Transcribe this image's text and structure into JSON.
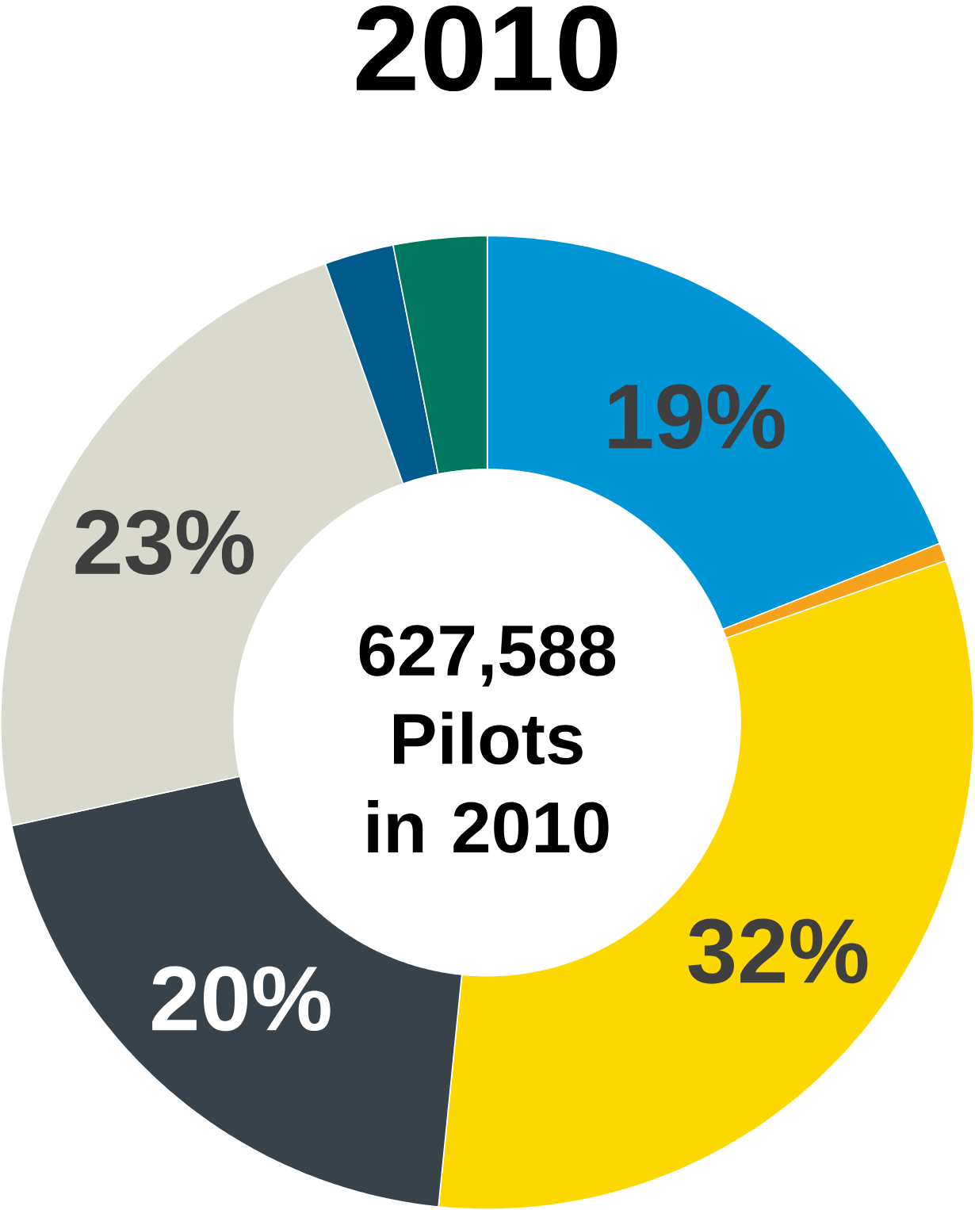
{
  "chart_data": {
    "type": "donut",
    "title": "2010",
    "categories": [
      null,
      null,
      null,
      null,
      null,
      null,
      null
    ],
    "values": [
      19,
      0.6,
      32,
      20,
      23,
      2.3,
      3.1
    ],
    "colors": [
      "#0096d6",
      "#f7a21b",
      "#fcd800",
      "#37424a",
      "#d9d9ce",
      "#005a8c",
      "#00775f"
    ],
    "value_labels": [
      "19%",
      null,
      "32%",
      "20%",
      "23%",
      null,
      null
    ],
    "annotations": [
      "627,588 Pilots in 2010"
    ]
  }
}
